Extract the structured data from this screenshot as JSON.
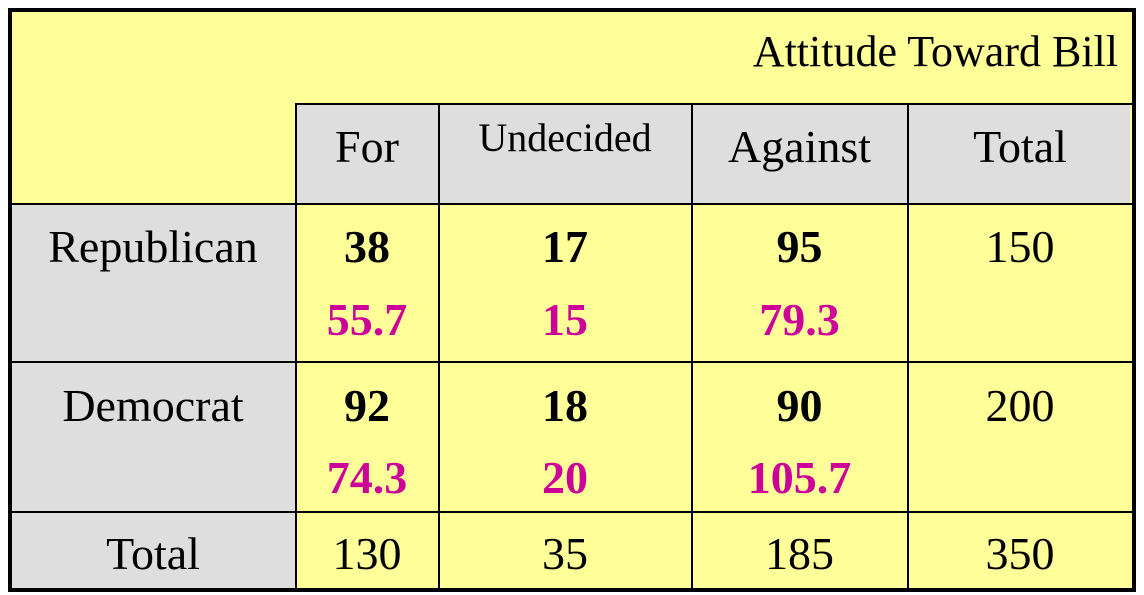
{
  "table": {
    "title": "Attitude Toward Bill",
    "columns": [
      "For",
      "Undecided",
      "Against",
      "Total"
    ],
    "rows": [
      {
        "label": "Republican",
        "observed": [
          "38",
          "17",
          "95"
        ],
        "expected": [
          "55.7",
          "15",
          "79.3"
        ],
        "total": "150"
      },
      {
        "label": "Democrat",
        "observed": [
          "92",
          "18",
          "90"
        ],
        "expected": [
          "74.3",
          "20",
          "105.7"
        ],
        "total": "200"
      }
    ],
    "total_row": {
      "label": "Total",
      "values": [
        "130",
        "35",
        "185",
        "350"
      ]
    }
  },
  "chart_data": {
    "type": "table",
    "title": "Attitude Toward Bill",
    "columns": [
      "For",
      "Undecided",
      "Against",
      "Total"
    ],
    "rows": [
      {
        "label": "Republican",
        "observed": [
          38,
          17,
          95
        ],
        "expected": [
          55.7,
          15,
          79.3
        ],
        "total": 150
      },
      {
        "label": "Democrat",
        "observed": [
          92,
          18,
          90
        ],
        "expected": [
          74.3,
          20,
          105.7
        ],
        "total": 200
      }
    ],
    "totals": [
      130,
      35,
      185,
      350
    ]
  },
  "colors": {
    "background": "#ffff99",
    "header_gray": "#dedede",
    "expected_text": "#cc0099",
    "text": "#000000"
  }
}
